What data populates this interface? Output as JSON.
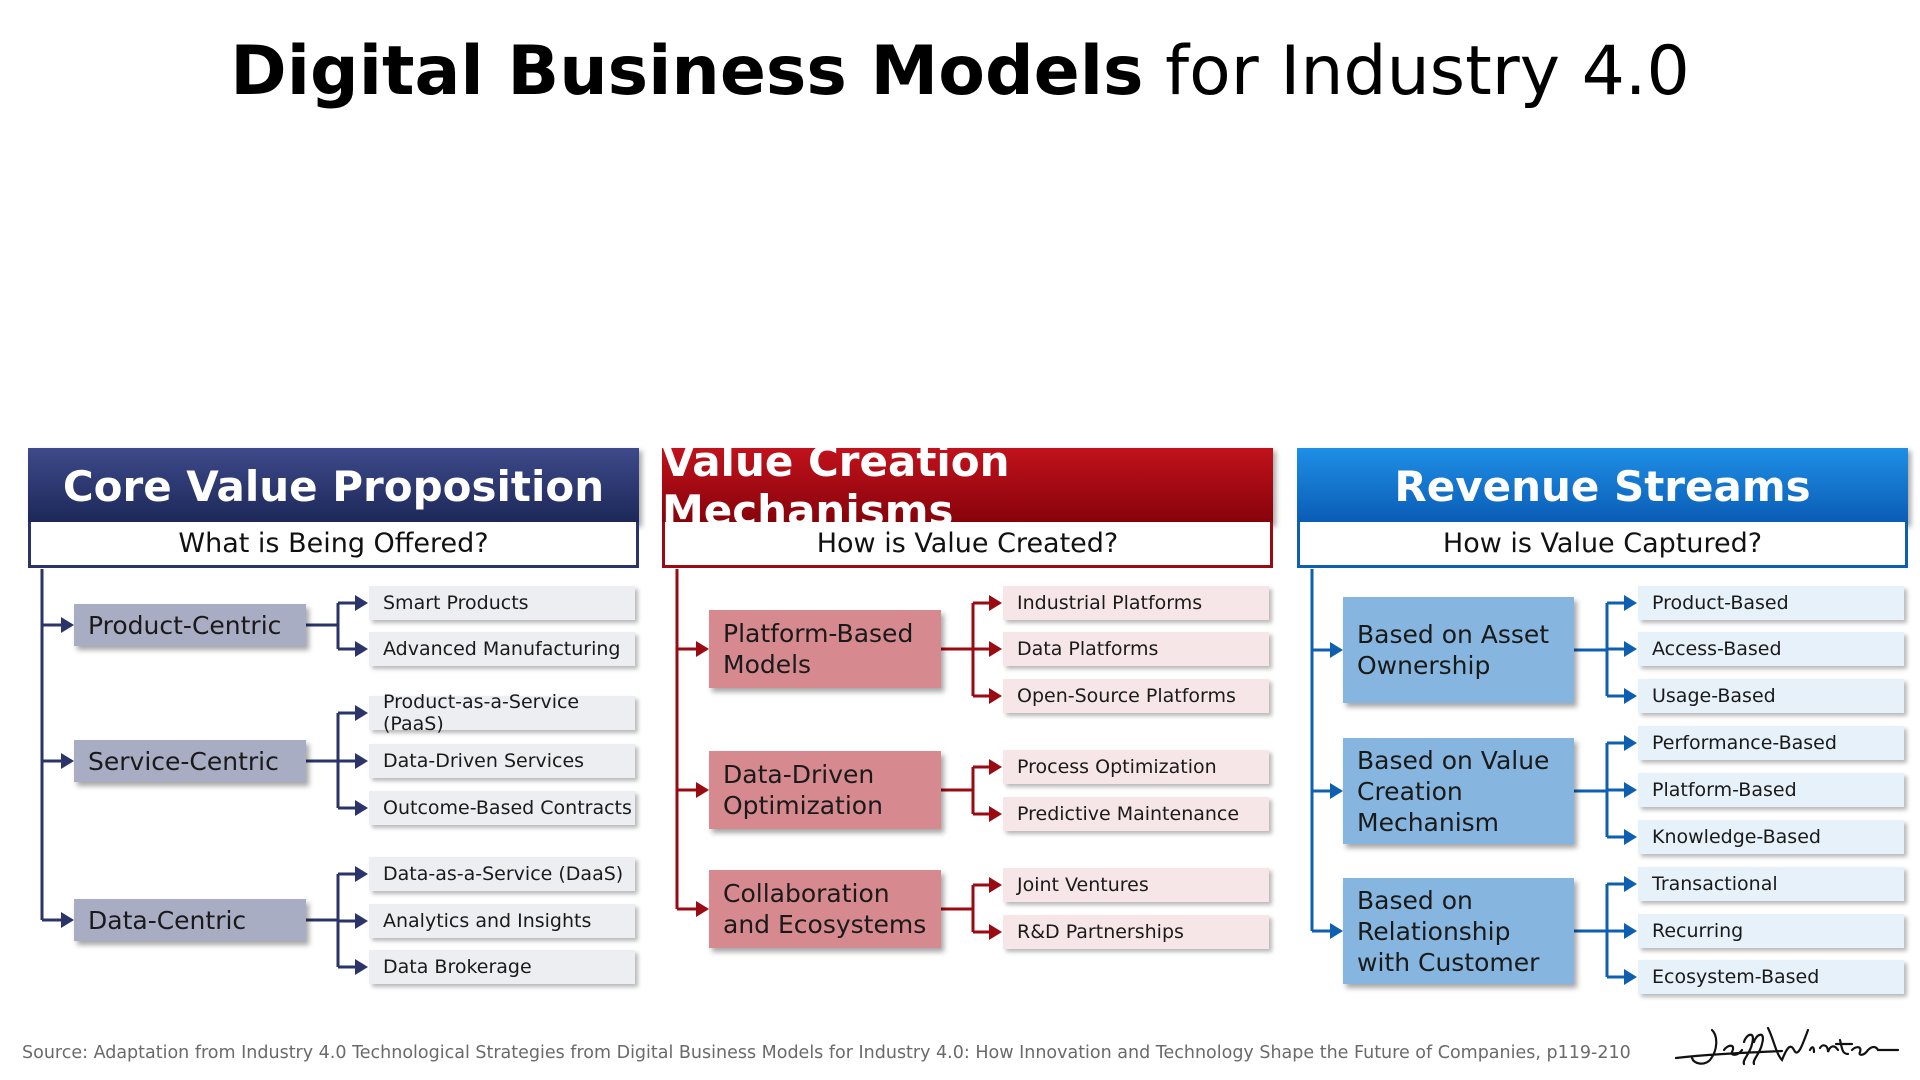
{
  "title": {
    "bold": "Digital Business Models",
    "rest": " for Industry 4.0"
  },
  "columns": [
    {
      "header": "Core Value Proposition",
      "subheader": "What is Being Offered?",
      "groups": [
        {
          "label": "Product-Centric",
          "items": [
            "Smart Products",
            "Advanced Manufacturing"
          ]
        },
        {
          "label": "Service-Centric",
          "items": [
            "Product-as-a-Service (PaaS)",
            "Data-Driven Services",
            "Outcome-Based Contracts"
          ]
        },
        {
          "label": "Data-Centric",
          "items": [
            "Data-as-a-Service (DaaS)",
            "Analytics and Insights",
            "Data Brokerage"
          ]
        }
      ]
    },
    {
      "header": "Value Creation Mechanisms",
      "subheader": "How is Value Created?",
      "groups": [
        {
          "label": "Platform-Based Models",
          "items": [
            "Industrial Platforms",
            "Data Platforms",
            "Open-Source Platforms"
          ]
        },
        {
          "label": "Data-Driven Optimization",
          "items": [
            "Process Optimization",
            "Predictive Maintenance"
          ]
        },
        {
          "label": "Collaboration and Ecosystems",
          "items": [
            "Joint Ventures",
            "R&D Partnerships"
          ]
        }
      ]
    },
    {
      "header": "Revenue Streams",
      "subheader": "How is Value Captured?",
      "groups": [
        {
          "label": "Based on Asset Ownership",
          "items": [
            "Product-Based",
            "Access-Based",
            "Usage-Based"
          ]
        },
        {
          "label": "Based on Value Creation Mechanism",
          "items": [
            "Performance-Based",
            "Platform-Based",
            "Knowledge-Based"
          ]
        },
        {
          "label": "Based on Relationship with Customer",
          "items": [
            "Transactional",
            "Recurring",
            "Ecosystem-Based"
          ]
        }
      ]
    }
  ],
  "colors": {
    "col1_header_gradient": [
      "#3e4a8a",
      "#1c2757"
    ],
    "col1_line": "#2a3468",
    "col1_category": "#a9adc4",
    "col2_header_gradient": [
      "#c1121c",
      "#86020a"
    ],
    "col2_line": "#9a0a12",
    "col2_category": "#d68a8f",
    "col3_header_gradient": [
      "#1f8fe6",
      "#0a5bb4"
    ],
    "col3_line": "#0f5fb0",
    "col3_category": "#86b6df"
  },
  "source": "Source: Adaptation from Industry 4.0 Technological Strategies from Digital Business Models for Industry 4.0: How Innovation and Technology Shape the Future of Companies, p119-210",
  "signature": "Jeff Winter"
}
